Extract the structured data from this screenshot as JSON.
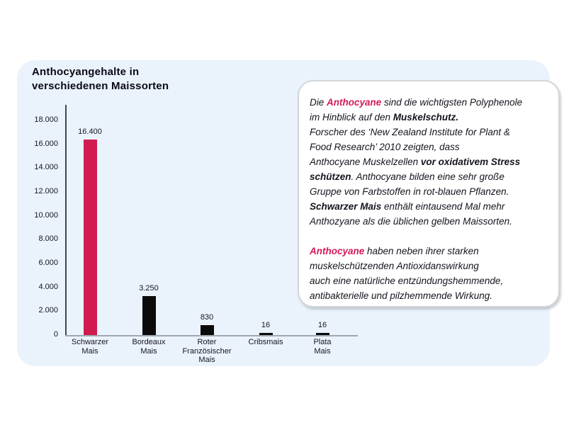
{
  "colors": {
    "panel_bg": "#EAF3FB",
    "accent_red": "#D6195C",
    "bar_red": "#D01A50",
    "bar_black": "#0B0B0B",
    "y_axis": "#3F4650",
    "x_axis": "#9FA9B2"
  },
  "title": {
    "line1": "Anthocyangehalte in",
    "line2": "verschiedenen Maissorten"
  },
  "chart_data": {
    "type": "bar",
    "title": "Anthocyangehalte in verschiedenen Maissorten",
    "categories": [
      "Schwarzer Mais",
      "Bordeaux Mais",
      "Roter Französischer Mais",
      "Cribsmais",
      "Plata Mais"
    ],
    "category_label_lines": [
      [
        "Schwarzer",
        "Mais"
      ],
      [
        "Bordeaux",
        "Mais"
      ],
      [
        "Roter",
        "Französischer",
        "Mais"
      ],
      [
        "Cribsmais"
      ],
      [
        "Plata",
        "Mais"
      ]
    ],
    "values": [
      16400,
      3250,
      830,
      16,
      16
    ],
    "value_labels": [
      "16.400",
      "3.250",
      "830",
      "16",
      "16"
    ],
    "bar_colors": [
      "#D01A50",
      "#0B0B0B",
      "#0B0B0B",
      "#0B0B0B",
      "#0B0B0B"
    ],
    "xlabel": "",
    "ylabel": "",
    "ylim": [
      0,
      18000
    ],
    "ytick_values": [
      18000,
      16000,
      14000,
      12000,
      10000,
      8000,
      6000,
      4000,
      2000,
      0
    ],
    "ytick_labels": [
      "18.000",
      "16.000",
      "14.000",
      "12.000",
      "10.000",
      "8.000",
      "6.000",
      "4.000",
      "2.000",
      "0"
    ],
    "grid": "off",
    "legend": "none"
  },
  "infobox": {
    "paragraphs": [
      [
        [
          {
            "t": "Die ",
            "s": "n"
          },
          {
            "t": "Anthocyane",
            "s": "rb"
          },
          {
            "t": " sind die wichtigsten Polyphenole",
            "s": "n"
          }
        ],
        [
          {
            "t": "im Hinblick auf den ",
            "s": "n"
          },
          {
            "t": "Muskelschutz.",
            "s": "b"
          }
        ],
        [
          {
            "t": "Forscher des ‘New Zealand Institute for Plant &",
            "s": "n"
          }
        ],
        [
          {
            "t": "Food Research’ 2010 zeigten, dass",
            "s": "n"
          }
        ],
        [
          {
            "t": "Anthocyane Muskelzellen ",
            "s": "n"
          },
          {
            "t": "vor oxidativem Stress",
            "s": "b"
          }
        ],
        [
          {
            "t": "schützen",
            "s": "b"
          },
          {
            "t": ".  Anthocyane bilden eine sehr große",
            "s": "n"
          }
        ],
        [
          {
            "t": "Gruppe von Farbstoffen in rot-blauen Pflanzen.",
            "s": "n"
          }
        ],
        [
          {
            "t": "Schwarzer Mais",
            "s": "b"
          },
          {
            "t": "  enthält eintausend Mal mehr",
            "s": "n"
          }
        ],
        [
          {
            "t": "Anthozyane als die üblichen gelben Maissorten.",
            "s": "n"
          }
        ]
      ],
      [
        [
          {
            "t": "Anthocyane",
            "s": "rb"
          },
          {
            "t": " haben neben ihrer starken",
            "s": "n"
          }
        ],
        [
          {
            "t": "muskelschützenden Antioxidanswirkung",
            "s": "n"
          }
        ],
        [
          {
            "t": "auch eine natürliche entzündungshemmende,",
            "s": "n"
          }
        ],
        [
          {
            "t": "antibakterielle und pilzhemmende Wirkung.",
            "s": "n"
          }
        ]
      ]
    ]
  }
}
